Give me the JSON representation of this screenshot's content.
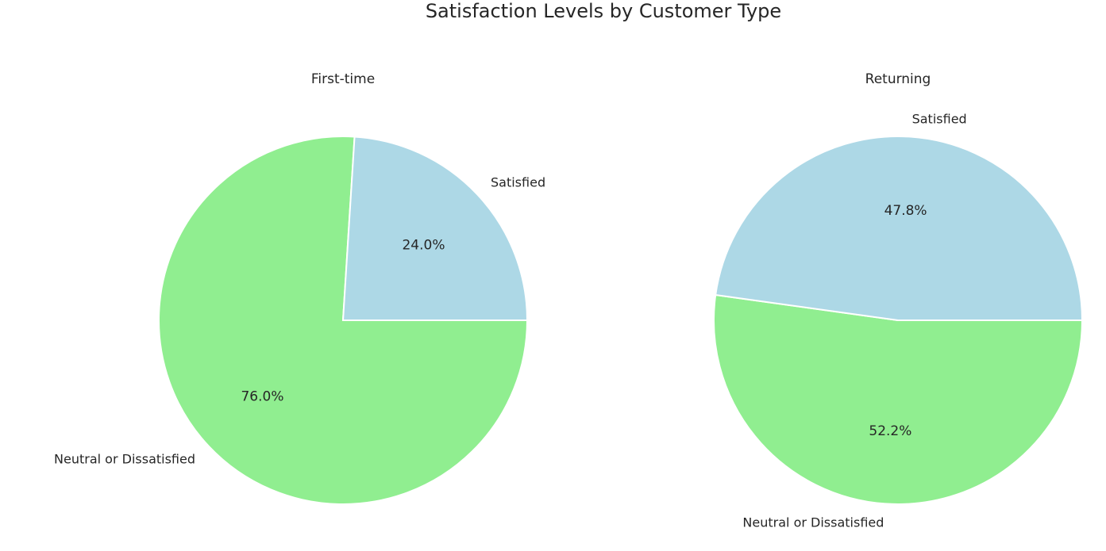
{
  "title": "Satisfaction Levels by Customer Type",
  "colors": {
    "Neutral or Dissatisfied": "#90ee90",
    "Satisfied": "#add8e6"
  },
  "chart_data": [
    {
      "type": "pie",
      "title": "First-time",
      "labels": [
        "Neutral or Dissatisfied",
        "Satisfied"
      ],
      "values": [
        76.0,
        24.0
      ],
      "value_labels": [
        "76.0%",
        "24.0%"
      ],
      "colors": [
        "#90ee90",
        "#add8e6"
      ]
    },
    {
      "type": "pie",
      "title": "Returning",
      "labels": [
        "Neutral or Dissatisfied",
        "Satisfied"
      ],
      "values": [
        52.2,
        47.8
      ],
      "value_labels": [
        "52.2%",
        "47.8%"
      ],
      "colors": [
        "#90ee90",
        "#add8e6"
      ]
    }
  ]
}
